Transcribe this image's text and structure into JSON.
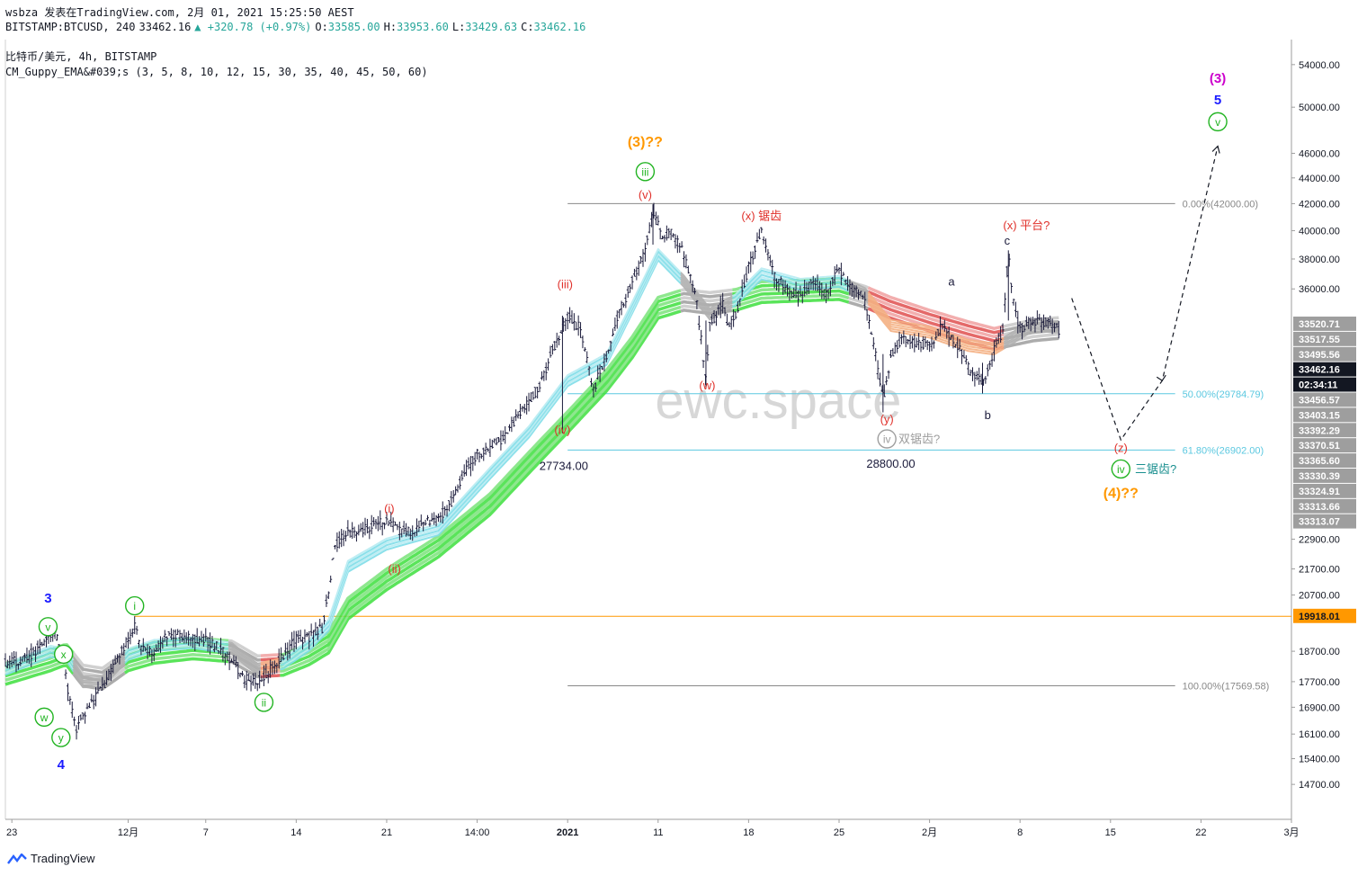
{
  "header": {
    "line1": "wsbza 发表在TradingView.com, 2月 01, 2021 15:25:50 AEST",
    "symbol": "BITSTAMP:BTCUSD, 240",
    "last": "33462.16",
    "change": "▲ +320.78 (+0.97%)",
    "o_label": "O:",
    "o": "33585.00",
    "h_label": "H:",
    "h": "33953.60",
    "l_label": "L:",
    "l": "33429.63",
    "c_label": "C:",
    "c": "33462.16",
    "line3": "比特币/美元, 4h, BITSTAMP",
    "line4": "CM_Guppy_EMA&#039;s (3, 5, 8, 10, 12, 15, 30, 35, 40, 45, 50, 60)"
  },
  "watermark": "ewc.space",
  "footer": {
    "brand": "TradingView"
  },
  "colors": {
    "candle": "#1a1a3a",
    "fast_ema": "#7fdde8",
    "slow_ema_up": "#3ee03e",
    "slow_ema_down": "#e05050",
    "neutral_ema": "#9e9e9e",
    "fib_gray": "#888888",
    "fib_cyan": "#5bc8e0",
    "hline_orange": "#ff9800",
    "wave_green": "#22b422",
    "wave_red": "#e0312b",
    "wave_orange": "#ff9800",
    "wave_blue": "#1a1aff",
    "wave_magenta": "#cc00cc"
  },
  "chart_data": {
    "type": "candlestick",
    "y_scale": "log",
    "ylim": [
      13800,
      56500
    ],
    "x_tick_labels": [
      "23",
      "12月",
      "7",
      "14",
      "21",
      "14:00",
      "2021",
      "11",
      "18",
      "25",
      "2月",
      "8",
      "15",
      "22",
      "3月"
    ],
    "x_tick_days": [
      -9,
      0,
      6,
      13,
      20,
      27,
      34,
      41,
      48,
      55,
      62,
      69,
      76,
      83,
      90
    ],
    "xlim_days": [
      -9.5,
      90
    ],
    "y_ticks": [
      54000,
      50000,
      46000,
      44000,
      42000,
      40000,
      38000,
      36000,
      22900,
      21700,
      20700,
      18700,
      17700,
      16900,
      16100,
      15400,
      14700
    ],
    "y_tick_labels": [
      "54000.00",
      "50000.00",
      "46000.00",
      "44000.00",
      "42000.00",
      "40000.00",
      "38000.00",
      "36000.00",
      "22900.00",
      "21700.00",
      "20700.00",
      "18700.00",
      "17700.00",
      "16900.00",
      "16100.00",
      "15400.00",
      "14700.00"
    ],
    "price_path": [
      [
        -9.5,
        18300
      ],
      [
        -8,
        18400
      ],
      [
        -6.5,
        19000
      ],
      [
        -5.7,
        19400
      ],
      [
        -5,
        18500
      ],
      [
        -4.6,
        17200
      ],
      [
        -4,
        16300
      ],
      [
        -3,
        16900
      ],
      [
        -2,
        17500
      ],
      [
        -1,
        18300
      ],
      [
        0,
        19100
      ],
      [
        0.5,
        19600
      ],
      [
        1,
        18900
      ],
      [
        2,
        18600
      ],
      [
        3,
        19300
      ],
      [
        4,
        19300
      ],
      [
        5,
        19100
      ],
      [
        6,
        19100
      ],
      [
        7,
        18800
      ],
      [
        8,
        18400
      ],
      [
        9,
        17800
      ],
      [
        10,
        17650
      ],
      [
        11,
        18100
      ],
      [
        12,
        18500
      ],
      [
        13,
        19100
      ],
      [
        14,
        19200
      ],
      [
        15,
        19500
      ],
      [
        15.5,
        20800
      ],
      [
        16,
        22600
      ],
      [
        17,
        23200
      ],
      [
        18,
        23200
      ],
      [
        19,
        23500
      ],
      [
        20,
        23600
      ],
      [
        21,
        23300
      ],
      [
        22,
        23200
      ],
      [
        23,
        23600
      ],
      [
        24,
        23800
      ],
      [
        25,
        24500
      ],
      [
        26,
        25800
      ],
      [
        27,
        26700
      ],
      [
        28,
        27000
      ],
      [
        29,
        27500
      ],
      [
        30,
        28500
      ],
      [
        31,
        29300
      ],
      [
        32,
        30500
      ],
      [
        33,
        32500
      ],
      [
        34,
        34300
      ],
      [
        35,
        33500
      ],
      [
        36,
        30000
      ],
      [
        36.5,
        31000
      ],
      [
        37,
        32000
      ],
      [
        38,
        34500
      ],
      [
        39,
        36500
      ],
      [
        40,
        38500
      ],
      [
        40.6,
        41500
      ],
      [
        41.3,
        39600
      ],
      [
        42,
        39800
      ],
      [
        43,
        38300
      ],
      [
        44,
        35000
      ],
      [
        44.7,
        30500
      ],
      [
        45,
        33800
      ],
      [
        46,
        35000
      ],
      [
        46.5,
        33500
      ],
      [
        47,
        34300
      ],
      [
        48,
        37500
      ],
      [
        49,
        40000
      ],
      [
        50,
        36800
      ],
      [
        51,
        36000
      ],
      [
        52,
        35500
      ],
      [
        53,
        36500
      ],
      [
        54,
        35800
      ],
      [
        55,
        37200
      ],
      [
        56,
        36200
      ],
      [
        57,
        35200
      ],
      [
        57.8,
        32000
      ],
      [
        58.4,
        29500
      ],
      [
        59,
        31800
      ],
      [
        60,
        33000
      ],
      [
        61,
        32700
      ],
      [
        62,
        32500
      ],
      [
        63,
        33700
      ],
      [
        64,
        32700
      ],
      [
        65,
        31200
      ],
      [
        66.1,
        30300
      ],
      [
        67,
        32200
      ],
      [
        67.7,
        33500
      ],
      [
        68.1,
        38500
      ],
      [
        68.5,
        35000
      ],
      [
        69,
        33500
      ],
      [
        70,
        34000
      ],
      [
        71,
        33900
      ],
      [
        72,
        33460
      ]
    ],
    "fast_ema_path": [
      [
        -9.5,
        18100
      ],
      [
        -6,
        18700
      ],
      [
        -4.8,
        18600
      ],
      [
        -3.5,
        17700
      ],
      [
        -2,
        17700
      ],
      [
        0,
        18600
      ],
      [
        2,
        18900
      ],
      [
        5,
        19000
      ],
      [
        8,
        18800
      ],
      [
        10,
        18100
      ],
      [
        12,
        18300
      ],
      [
        14,
        18900
      ],
      [
        15.5,
        19600
      ],
      [
        17,
        21800
      ],
      [
        20,
        22700
      ],
      [
        24,
        23300
      ],
      [
        28,
        25800
      ],
      [
        31,
        27800
      ],
      [
        34,
        30500
      ],
      [
        37,
        31700
      ],
      [
        39,
        34800
      ],
      [
        41,
        38300
      ],
      [
        43,
        36500
      ],
      [
        45,
        34400
      ],
      [
        47,
        35300
      ],
      [
        49,
        37000
      ],
      [
        52,
        36300
      ],
      [
        55,
        36500
      ],
      [
        57,
        35700
      ],
      [
        59,
        33700
      ],
      [
        62,
        33300
      ],
      [
        65,
        32500
      ],
      [
        67,
        32300
      ],
      [
        70,
        33700
      ],
      [
        72,
        33600
      ]
    ],
    "slow_ema_path": [
      [
        -9.5,
        17950
      ],
      [
        -6,
        18400
      ],
      [
        -4.8,
        18600
      ],
      [
        -3.5,
        17900
      ],
      [
        -2,
        17800
      ],
      [
        0,
        18400
      ],
      [
        2,
        18650
      ],
      [
        5,
        18800
      ],
      [
        8,
        18700
      ],
      [
        10,
        18200
      ],
      [
        12,
        18250
      ],
      [
        14,
        18600
      ],
      [
        15.5,
        19000
      ],
      [
        17,
        20200
      ],
      [
        20,
        21300
      ],
      [
        24,
        22600
      ],
      [
        28,
        24400
      ],
      [
        31,
        26300
      ],
      [
        34,
        28300
      ],
      [
        37,
        30500
      ],
      [
        39,
        32400
      ],
      [
        41,
        34800
      ],
      [
        43,
        35300
      ],
      [
        45,
        35100
      ],
      [
        47,
        35300
      ],
      [
        49,
        35800
      ],
      [
        52,
        35900
      ],
      [
        55,
        36000
      ],
      [
        57,
        35500
      ],
      [
        59,
        34800
      ],
      [
        62,
        34000
      ],
      [
        65,
        33300
      ],
      [
        67,
        32900
      ],
      [
        70,
        33400
      ],
      [
        72,
        33550
      ]
    ],
    "slow_ema_color_segments": [
      {
        "from": -9.5,
        "to": -4,
        "color": "green"
      },
      {
        "from": -4,
        "to": 0,
        "color": "gray"
      },
      {
        "from": 0,
        "to": 8,
        "color": "green"
      },
      {
        "from": 8,
        "to": 10.5,
        "color": "gray"
      },
      {
        "from": 10.5,
        "to": 12,
        "color": "red"
      },
      {
        "from": 12,
        "to": 43,
        "color": "green"
      },
      {
        "from": 43,
        "to": 47,
        "color": "gray"
      },
      {
        "from": 47,
        "to": 56,
        "color": "green"
      },
      {
        "from": 56,
        "to": 57.5,
        "color": "gray"
      },
      {
        "from": 57.5,
        "to": 68,
        "color": "red"
      },
      {
        "from": 68,
        "to": 72,
        "color": "gray"
      }
    ],
    "projection_path": [
      [
        73,
        35400
      ],
      [
        76.8,
        27400
      ],
      [
        80,
        30500
      ],
      [
        84.3,
        46600
      ]
    ],
    "horizontal_lines": [
      {
        "price": 42000,
        "label": "0.00%(42000.00)",
        "style": "fib_gray",
        "from_day": 34
      },
      {
        "price": 29784.79,
        "label": "50.00%(29784.79)",
        "style": "fib_cyan",
        "from_day": 34
      },
      {
        "price": 26902.0,
        "label": "61.80%(26902.00)",
        "style": "fib_cyan",
        "from_day": 34
      },
      {
        "price": 17569.58,
        "label": "100.00%(17569.58)",
        "style": "fib_gray",
        "from_day": 34
      },
      {
        "price": 19918.01,
        "label": "",
        "style": "hline_orange",
        "from_day": 0.5
      }
    ],
    "price_scale_labels": [
      {
        "text": "33520.71",
        "bg": "#9e9e9e",
        "fg": "#ffffff"
      },
      {
        "text": "33517.55",
        "bg": "#9e9e9e",
        "fg": "#ffffff"
      },
      {
        "text": "33495.56",
        "bg": "#9e9e9e",
        "fg": "#ffffff"
      },
      {
        "text": "33462.16",
        "bg": "#131722",
        "fg": "#ffffff"
      },
      {
        "text": "02:34:11",
        "bg": "#131722",
        "fg": "#ffffff"
      },
      {
        "text": "33456.57",
        "bg": "#9e9e9e",
        "fg": "#ffffff"
      },
      {
        "text": "33403.15",
        "bg": "#9e9e9e",
        "fg": "#ffffff"
      },
      {
        "text": "33392.29",
        "bg": "#9e9e9e",
        "fg": "#ffffff"
      },
      {
        "text": "33370.51",
        "bg": "#9e9e9e",
        "fg": "#ffffff"
      },
      {
        "text": "33365.60",
        "bg": "#9e9e9e",
        "fg": "#ffffff"
      },
      {
        "text": "33330.39",
        "bg": "#9e9e9e",
        "fg": "#ffffff"
      },
      {
        "text": "33324.91",
        "bg": "#9e9e9e",
        "fg": "#ffffff"
      },
      {
        "text": "33313.66",
        "bg": "#9e9e9e",
        "fg": "#ffffff"
      },
      {
        "text": "33313.07",
        "bg": "#9e9e9e",
        "fg": "#ffffff"
      },
      {
        "text": "19918.01",
        "bg": "#ff9800",
        "fg": "#131722"
      }
    ],
    "annotations": [
      {
        "text": "3",
        "day": -6.2,
        "price": 20600,
        "color": "wave_blue",
        "circle": false,
        "size": 15
      },
      {
        "text": "v",
        "day": -6.2,
        "price": 19550,
        "color": "wave_green",
        "circle": true
      },
      {
        "text": "x",
        "day": -5.0,
        "price": 18600,
        "color": "wave_green",
        "circle": true
      },
      {
        "text": "w",
        "day": -6.5,
        "price": 16600,
        "color": "wave_green",
        "circle": true
      },
      {
        "text": "y",
        "day": -5.2,
        "price": 16000,
        "color": "wave_green",
        "circle": true
      },
      {
        "text": "4",
        "day": -5.2,
        "price": 15250,
        "color": "wave_blue",
        "circle": false,
        "size": 15
      },
      {
        "text": "i",
        "day": 0.5,
        "price": 20300,
        "color": "wave_green",
        "circle": true
      },
      {
        "text": "ii",
        "day": 10.5,
        "price": 17050,
        "color": "wave_green",
        "circle": true
      },
      {
        "text": "(i)",
        "day": 20.2,
        "price": 24200,
        "color": "wave_red",
        "circle": false
      },
      {
        "text": "(ii)",
        "day": 20.6,
        "price": 21700,
        "color": "wave_red",
        "circle": false
      },
      {
        "text": "(iii)",
        "day": 33.8,
        "price": 36300,
        "color": "wave_red",
        "circle": false
      },
      {
        "text": "(iv)",
        "day": 33.6,
        "price": 27900,
        "color": "wave_red",
        "circle": false
      },
      {
        "text": "27734.00",
        "day": 33.7,
        "price": 26150,
        "color": "candle",
        "circle": false
      },
      {
        "text": "(3)??",
        "day": 40.0,
        "price": 47000,
        "color": "wave_orange",
        "circle": false,
        "size": 16
      },
      {
        "text": "iii",
        "day": 40.0,
        "price": 44500,
        "color": "wave_green",
        "circle": true
      },
      {
        "text": "(v)",
        "day": 40.0,
        "price": 42700,
        "color": "wave_red",
        "circle": false
      },
      {
        "text": "(w)",
        "day": 44.8,
        "price": 30250,
        "color": "wave_red",
        "circle": false
      },
      {
        "text": "(x) 锯齿",
        "day": 49.0,
        "price": 41100,
        "color": "wave_red",
        "circle": false
      },
      {
        "text": "(y)",
        "day": 58.7,
        "price": 28450,
        "color": "wave_red",
        "circle": false
      },
      {
        "text": "iv",
        "day": 58.7,
        "price": 27450,
        "color": "neutral_ema",
        "circle": true
      },
      {
        "text": "双锯齿?",
        "day": 61.2,
        "price": 27450,
        "color": "neutral_ema",
        "circle": false
      },
      {
        "text": "28800.00",
        "day": 59.0,
        "price": 26250,
        "color": "candle",
        "circle": false
      },
      {
        "text": "a",
        "day": 63.7,
        "price": 36500,
        "color": "candle",
        "circle": false
      },
      {
        "text": "b",
        "day": 66.5,
        "price": 28650,
        "color": "candle",
        "circle": false
      },
      {
        "text": "c",
        "day": 68.0,
        "price": 39300,
        "color": "candle",
        "circle": false
      },
      {
        "text": "(x) 平台?",
        "day": 69.5,
        "price": 40400,
        "color": "wave_red",
        "circle": false
      },
      {
        "text": "(z)",
        "day": 76.8,
        "price": 27000,
        "color": "wave_red",
        "circle": false
      },
      {
        "text": "iv",
        "day": 76.8,
        "price": 26000,
        "color": "wave_green",
        "circle": true
      },
      {
        "text": "三锯齿?",
        "day": 79.5,
        "price": 26000,
        "color": "teal",
        "circle": false
      },
      {
        "text": "(4)??",
        "day": 76.8,
        "price": 24900,
        "color": "wave_orange",
        "circle": false,
        "size": 16
      },
      {
        "text": "(3)",
        "day": 84.3,
        "price": 52700,
        "color": "wave_magenta",
        "circle": false,
        "size": 15
      },
      {
        "text": "5",
        "day": 84.3,
        "price": 50700,
        "color": "wave_blue",
        "circle": false,
        "size": 15
      },
      {
        "text": "v",
        "day": 84.3,
        "price": 48700,
        "color": "wave_green",
        "circle": true
      }
    ]
  }
}
